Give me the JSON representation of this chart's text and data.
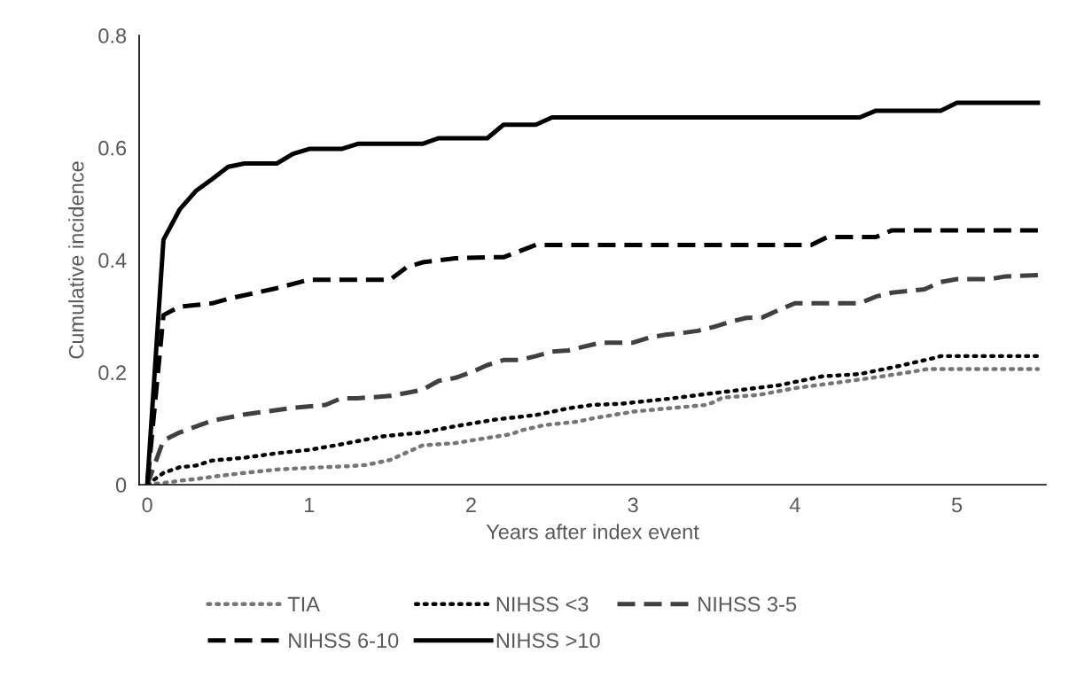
{
  "chart_data": {
    "type": "line",
    "xlabel": "Years after index event",
    "ylabel": "Cumulative incidence",
    "xlim": [
      -0.05,
      5.55
    ],
    "ylim": [
      0,
      0.8
    ],
    "xticks": [
      0,
      1,
      2,
      3,
      4,
      5
    ],
    "yticks": [
      0,
      0.2,
      0.4,
      0.6,
      0.8
    ],
    "grid": false,
    "legend": "bottom",
    "series": [
      {
        "name": "TIA",
        "color": "#767676",
        "line_style": "dotted",
        "x": [
          0,
          0.1,
          0.2,
          0.3,
          0.4,
          0.6,
          0.8,
          1.0,
          1.25,
          1.35,
          1.5,
          1.6,
          1.7,
          1.9,
          2.05,
          2.25,
          2.3,
          2.45,
          2.65,
          2.75,
          3.0,
          3.22,
          3.45,
          3.5,
          3.55,
          3.78,
          4.0,
          4.24,
          4.47,
          4.7,
          4.82,
          5.5
        ],
        "values": [
          0,
          0.003,
          0.007,
          0.01,
          0.014,
          0.021,
          0.027,
          0.03,
          0.033,
          0.035,
          0.044,
          0.057,
          0.07,
          0.074,
          0.081,
          0.09,
          0.096,
          0.106,
          0.112,
          0.118,
          0.13,
          0.136,
          0.142,
          0.147,
          0.155,
          0.16,
          0.172,
          0.181,
          0.19,
          0.2,
          0.206,
          0.206
        ]
      },
      {
        "name": "NIHSS <3",
        "color": "#000000",
        "line_style": "dotted",
        "x": [
          0,
          0.1,
          0.2,
          0.3,
          0.4,
          0.6,
          0.8,
          1.0,
          1.2,
          1.45,
          1.7,
          1.9,
          2.15,
          2.4,
          2.6,
          2.75,
          2.92,
          3.22,
          3.44,
          3.67,
          3.9,
          4.17,
          4.4,
          4.62,
          4.85,
          4.9,
          5.5
        ],
        "values": [
          0,
          0.021,
          0.031,
          0.034,
          0.043,
          0.048,
          0.056,
          0.062,
          0.072,
          0.086,
          0.093,
          0.104,
          0.116,
          0.124,
          0.136,
          0.142,
          0.144,
          0.153,
          0.161,
          0.169,
          0.177,
          0.193,
          0.197,
          0.21,
          0.225,
          0.229,
          0.229
        ]
      },
      {
        "name": "NIHSS 3-5",
        "color": "#404040",
        "line_style": "dashed",
        "x": [
          0,
          0.1,
          0.2,
          0.4,
          0.6,
          0.9,
          1.1,
          1.2,
          1.3,
          1.5,
          1.7,
          1.8,
          1.9,
          2.0,
          2.1,
          2.2,
          2.3,
          2.4,
          2.5,
          2.6,
          2.8,
          3.0,
          3.1,
          3.2,
          3.3,
          3.4,
          3.5,
          3.6,
          3.7,
          3.8,
          3.9,
          4.0,
          4.4,
          4.5,
          4.6,
          4.8,
          4.9,
          5.0,
          5.2,
          5.3,
          5.5
        ],
        "values": [
          0,
          0.079,
          0.093,
          0.114,
          0.125,
          0.137,
          0.142,
          0.154,
          0.154,
          0.158,
          0.169,
          0.185,
          0.19,
          0.2,
          0.213,
          0.222,
          0.222,
          0.229,
          0.237,
          0.239,
          0.253,
          0.253,
          0.262,
          0.267,
          0.27,
          0.274,
          0.281,
          0.29,
          0.297,
          0.298,
          0.311,
          0.323,
          0.323,
          0.335,
          0.342,
          0.348,
          0.361,
          0.366,
          0.366,
          0.371,
          0.373
        ]
      },
      {
        "name": "NIHSS 6-10",
        "color": "#000000",
        "line_style": "dashed",
        "x": [
          0,
          0.1,
          0.2,
          0.4,
          0.5,
          0.8,
          1.0,
          1.5,
          1.6,
          1.7,
          1.9,
          2.1,
          2.2,
          2.4,
          4.1,
          4.2,
          4.5,
          4.6,
          5.5
        ],
        "values": [
          0,
          0.302,
          0.317,
          0.323,
          0.331,
          0.35,
          0.365,
          0.365,
          0.387,
          0.396,
          0.403,
          0.405,
          0.405,
          0.427,
          0.427,
          0.441,
          0.441,
          0.453,
          0.453
        ]
      },
      {
        "name": "NIHSS >10",
        "color": "#000000",
        "line_style": "solid",
        "x": [
          0,
          0.1,
          0.2,
          0.3,
          0.4,
          0.5,
          0.6,
          0.8,
          0.9,
          1.0,
          1.2,
          1.3,
          1.7,
          1.8,
          2.1,
          2.2,
          2.4,
          2.5,
          4.4,
          4.5,
          4.9,
          5.0,
          5.5
        ],
        "values": [
          0,
          0.436,
          0.49,
          0.523,
          0.544,
          0.566,
          0.572,
          0.572,
          0.589,
          0.598,
          0.598,
          0.607,
          0.607,
          0.617,
          0.617,
          0.641,
          0.641,
          0.654,
          0.654,
          0.666,
          0.666,
          0.68,
          0.68
        ]
      }
    ]
  }
}
